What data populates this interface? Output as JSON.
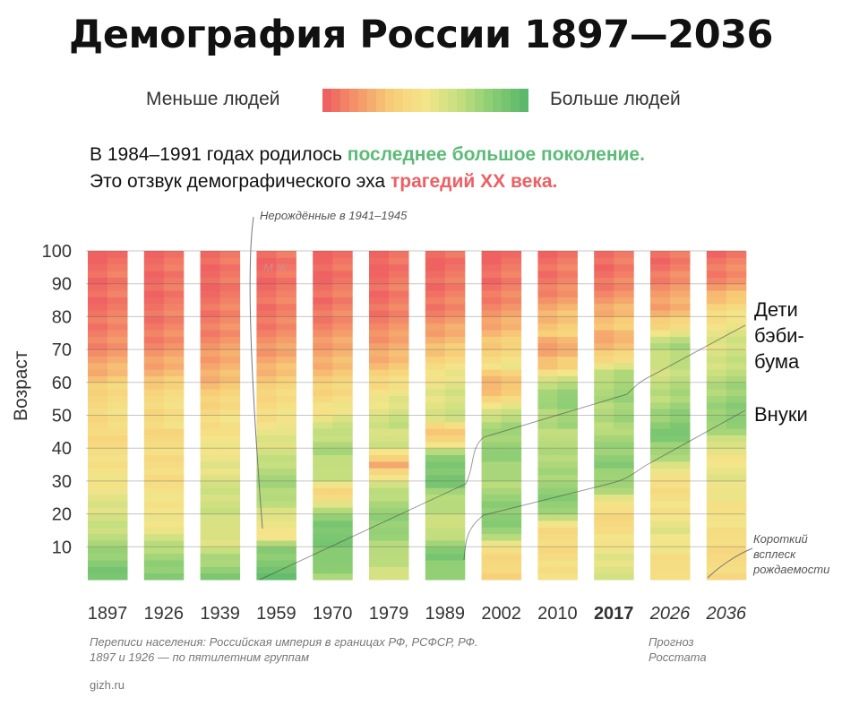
{
  "title": "Демография России 1897—2036",
  "legend": {
    "less": "Меньше людей",
    "more": "Больше людей",
    "gradient": [
      "#ef6262",
      "#f49a6a",
      "#f7cf78",
      "#f4e58a",
      "#c6df7f",
      "#8ccd74",
      "#5cb96c"
    ]
  },
  "subtitle": {
    "line1_prefix": "В 1984–1991 годах родилось ",
    "line1_highlight": "последнее большое поколение.",
    "line2_prefix": "Это отзвук демографического эха ",
    "line2_highlight": "трагедий XX века."
  },
  "annotations": {
    "unborn": "Нерождённые в 1941–1945",
    "mf": "М Ж",
    "boomers": [
      "Дети",
      "бэби-",
      "бума"
    ],
    "grandchildren": "Внуки",
    "short_burst": [
      "Короткий",
      "всплеск",
      "рождаемости"
    ]
  },
  "footer": {
    "census_line1": "Переписи населения: Российская империя в границах РФ, РСФСР, РФ.",
    "census_line2": "1897 и 1926 — по пятилетним группам",
    "forecast_line1": "Прогноз",
    "forecast_line2": "Росстата",
    "source": "gizh.ru"
  },
  "chart_data": {
    "type": "heatmap",
    "ylabel": "Возраст",
    "ylim": [
      0,
      100
    ],
    "yticks": [
      10,
      20,
      30,
      40,
      50,
      60,
      70,
      80,
      90,
      100
    ],
    "columns": [
      {
        "label": "1897",
        "bold": false,
        "italic": false,
        "profile": [
          [
            0,
            0.95
          ],
          [
            10,
            0.75
          ],
          [
            20,
            0.6
          ],
          [
            30,
            0.5
          ],
          [
            40,
            0.42
          ],
          [
            50,
            0.4
          ],
          [
            58,
            0.38
          ],
          [
            62,
            0.25
          ],
          [
            70,
            0.12
          ],
          [
            80,
            0.04
          ],
          [
            100,
            0.0
          ]
        ]
      },
      {
        "label": "1926",
        "bold": false,
        "italic": false,
        "profile": [
          [
            0,
            0.9
          ],
          [
            8,
            0.75
          ],
          [
            15,
            0.55
          ],
          [
            20,
            0.5
          ],
          [
            30,
            0.45
          ],
          [
            40,
            0.42
          ],
          [
            50,
            0.4
          ],
          [
            58,
            0.38
          ],
          [
            62,
            0.25
          ],
          [
            70,
            0.12
          ],
          [
            80,
            0.04
          ],
          [
            100,
            0.0
          ]
        ]
      },
      {
        "label": "1939",
        "bold": false,
        "italic": false,
        "profile": [
          [
            0,
            0.9
          ],
          [
            8,
            0.7
          ],
          [
            12,
            0.55
          ],
          [
            20,
            0.65
          ],
          [
            30,
            0.6
          ],
          [
            40,
            0.5
          ],
          [
            50,
            0.42
          ],
          [
            58,
            0.3
          ],
          [
            65,
            0.2
          ],
          [
            75,
            0.1
          ],
          [
            85,
            0.03
          ],
          [
            100,
            0.0
          ]
        ]
      },
      {
        "label": "1959",
        "bold": false,
        "italic": false,
        "profile": [
          [
            0,
            0.95
          ],
          [
            10,
            0.82
          ],
          [
            14,
            0.42
          ],
          [
            18,
            0.55
          ],
          [
            25,
            0.72
          ],
          [
            32,
            0.75
          ],
          [
            40,
            0.6
          ],
          [
            50,
            0.45
          ],
          [
            60,
            0.32
          ],
          [
            70,
            0.15
          ],
          [
            80,
            0.05
          ],
          [
            100,
            0.0
          ]
        ]
      },
      {
        "label": "1970",
        "bold": false,
        "italic": false,
        "profile": [
          [
            0,
            0.75
          ],
          [
            8,
            0.88
          ],
          [
            16,
            0.9
          ],
          [
            22,
            0.7
          ],
          [
            26,
            0.3
          ],
          [
            30,
            0.62
          ],
          [
            40,
            0.75
          ],
          [
            47,
            0.6
          ],
          [
            55,
            0.4
          ],
          [
            65,
            0.25
          ],
          [
            75,
            0.12
          ],
          [
            85,
            0.03
          ],
          [
            100,
            0.0
          ]
        ]
      },
      {
        "label": "1979",
        "bold": false,
        "italic": false,
        "profile": [
          [
            0,
            0.6
          ],
          [
            8,
            0.7
          ],
          [
            16,
            0.82
          ],
          [
            24,
            0.75
          ],
          [
            30,
            0.6
          ],
          [
            35,
            0.2
          ],
          [
            40,
            0.62
          ],
          [
            50,
            0.6
          ],
          [
            58,
            0.45
          ],
          [
            65,
            0.28
          ],
          [
            75,
            0.12
          ],
          [
            85,
            0.03
          ],
          [
            100,
            0.0
          ]
        ]
      },
      {
        "label": "1989",
        "bold": false,
        "italic": false,
        "profile": [
          [
            0,
            0.78
          ],
          [
            8,
            0.88
          ],
          [
            16,
            0.62
          ],
          [
            25,
            0.72
          ],
          [
            30,
            0.92
          ],
          [
            38,
            0.82
          ],
          [
            44,
            0.25
          ],
          [
            50,
            0.6
          ],
          [
            58,
            0.55
          ],
          [
            65,
            0.42
          ],
          [
            72,
            0.25
          ],
          [
            80,
            0.1
          ],
          [
            90,
            0.02
          ],
          [
            100,
            0.0
          ]
        ]
      },
      {
        "label": "2002",
        "bold": false,
        "italic": false,
        "profile": [
          [
            0,
            0.38
          ],
          [
            10,
            0.42
          ],
          [
            14,
            0.82
          ],
          [
            20,
            0.85
          ],
          [
            30,
            0.72
          ],
          [
            40,
            0.82
          ],
          [
            48,
            0.72
          ],
          [
            56,
            0.35
          ],
          [
            60,
            0.2
          ],
          [
            65,
            0.45
          ],
          [
            72,
            0.32
          ],
          [
            80,
            0.15
          ],
          [
            90,
            0.03
          ],
          [
            100,
            0.0
          ]
        ]
      },
      {
        "label": "2010",
        "bold": false,
        "italic": false,
        "profile": [
          [
            0,
            0.5
          ],
          [
            8,
            0.42
          ],
          [
            15,
            0.4
          ],
          [
            22,
            0.85
          ],
          [
            30,
            0.78
          ],
          [
            40,
            0.7
          ],
          [
            50,
            0.72
          ],
          [
            58,
            0.78
          ],
          [
            65,
            0.32
          ],
          [
            70,
            0.15
          ],
          [
            75,
            0.32
          ],
          [
            80,
            0.25
          ],
          [
            90,
            0.06
          ],
          [
            100,
            0.0
          ]
        ]
      },
      {
        "label": "2017",
        "bold": true,
        "italic": false,
        "profile": [
          [
            0,
            0.62
          ],
          [
            8,
            0.55
          ],
          [
            15,
            0.42
          ],
          [
            22,
            0.42
          ],
          [
            28,
            0.75
          ],
          [
            35,
            0.85
          ],
          [
            45,
            0.72
          ],
          [
            55,
            0.72
          ],
          [
            62,
            0.72
          ],
          [
            68,
            0.35
          ],
          [
            72,
            0.2
          ],
          [
            78,
            0.3
          ],
          [
            85,
            0.15
          ],
          [
            92,
            0.04
          ],
          [
            100,
            0.0
          ]
        ]
      },
      {
        "label": "2026",
        "bold": false,
        "italic": true,
        "profile": [
          [
            0,
            0.4
          ],
          [
            8,
            0.48
          ],
          [
            15,
            0.55
          ],
          [
            22,
            0.48
          ],
          [
            30,
            0.42
          ],
          [
            38,
            0.75
          ],
          [
            45,
            0.88
          ],
          [
            55,
            0.7
          ],
          [
            65,
            0.62
          ],
          [
            72,
            0.7
          ],
          [
            78,
            0.35
          ],
          [
            82,
            0.2
          ],
          [
            88,
            0.15
          ],
          [
            95,
            0.04
          ],
          [
            100,
            0.0
          ]
        ]
      },
      {
        "label": "2036",
        "bold": false,
        "italic": true,
        "profile": [
          [
            0,
            0.42
          ],
          [
            8,
            0.42
          ],
          [
            15,
            0.45
          ],
          [
            22,
            0.48
          ],
          [
            30,
            0.55
          ],
          [
            38,
            0.5
          ],
          [
            45,
            0.72
          ],
          [
            50,
            0.82
          ],
          [
            58,
            0.72
          ],
          [
            66,
            0.62
          ],
          [
            74,
            0.55
          ],
          [
            80,
            0.45
          ],
          [
            85,
            0.3
          ],
          [
            90,
            0.12
          ],
          [
            100,
            0.02
          ]
        ]
      }
    ]
  }
}
